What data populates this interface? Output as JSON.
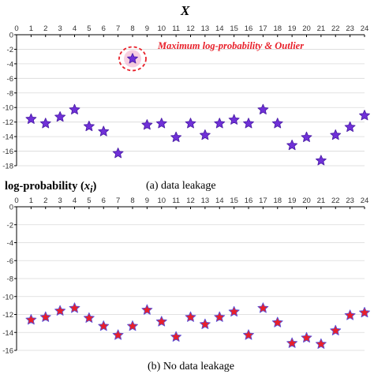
{
  "chart_data": [
    {
      "type": "scatter",
      "title": "X",
      "caption": "(a) data leakage",
      "ylabel": "log-probability (x_i)",
      "xlim": [
        0,
        24
      ],
      "ylim": [
        -18,
        0
      ],
      "x_ticks": [
        0,
        1,
        2,
        3,
        4,
        5,
        6,
        7,
        8,
        9,
        10,
        11,
        12,
        13,
        14,
        15,
        16,
        17,
        18,
        19,
        20,
        21,
        22,
        23,
        24
      ],
      "y_ticks": [
        0,
        -2,
        -4,
        -6,
        -8,
        -10,
        -12,
        -14,
        -16,
        -18
      ],
      "grid": true,
      "marker": "star",
      "colors": {
        "fill": "#7030d8",
        "edge": "#4c1fa8",
        "highlight": "#e8202a"
      },
      "annotation": {
        "text": "Maximum log-probability & Outlier",
        "x": 8,
        "y": -3.3
      },
      "series": [
        {
          "x": [
            1,
            2,
            3,
            4,
            5,
            6,
            7,
            8,
            9,
            10,
            11,
            12,
            13,
            14,
            15,
            16,
            17,
            18,
            19,
            20,
            21,
            22,
            23,
            24
          ],
          "y": [
            -11.6,
            -12.2,
            -11.3,
            -10.3,
            -12.6,
            -13.3,
            -16.3,
            -3.3,
            -12.4,
            -12.2,
            -14.1,
            -12.2,
            -13.8,
            -12.2,
            -11.7,
            -12.2,
            -10.3,
            -12.2,
            -15.2,
            -14.1,
            -17.3,
            -13.8,
            -12.7,
            -11.1
          ]
        }
      ]
    },
    {
      "type": "scatter",
      "caption": "(b) No data leakage",
      "xlim": [
        0,
        24
      ],
      "ylim": [
        -16,
        0
      ],
      "x_ticks": [
        0,
        1,
        2,
        3,
        4,
        5,
        6,
        7,
        8,
        9,
        10,
        11,
        12,
        13,
        14,
        15,
        16,
        17,
        18,
        19,
        20,
        21,
        22,
        23,
        24
      ],
      "y_ticks": [
        0,
        -2,
        -4,
        -6,
        -8,
        -10,
        -12,
        -14,
        -16
      ],
      "grid": true,
      "marker": "star",
      "colors": {
        "fill": "#e8202a",
        "edge": "#5b4fd6"
      },
      "series": [
        {
          "x": [
            1,
            2,
            3,
            4,
            5,
            6,
            7,
            8,
            9,
            10,
            11,
            12,
            13,
            14,
            15,
            16,
            17,
            18,
            19,
            20,
            21,
            22,
            23,
            24
          ],
          "y": [
            -12.6,
            -12.3,
            -11.6,
            -11.3,
            -12.4,
            -13.3,
            -14.3,
            -13.3,
            -11.5,
            -12.8,
            -14.5,
            -12.3,
            -13.1,
            -12.3,
            -11.7,
            -14.3,
            -11.3,
            -12.9,
            -15.2,
            -14.6,
            -15.3,
            -13.8,
            -12.1,
            -11.8
          ]
        }
      ]
    }
  ]
}
